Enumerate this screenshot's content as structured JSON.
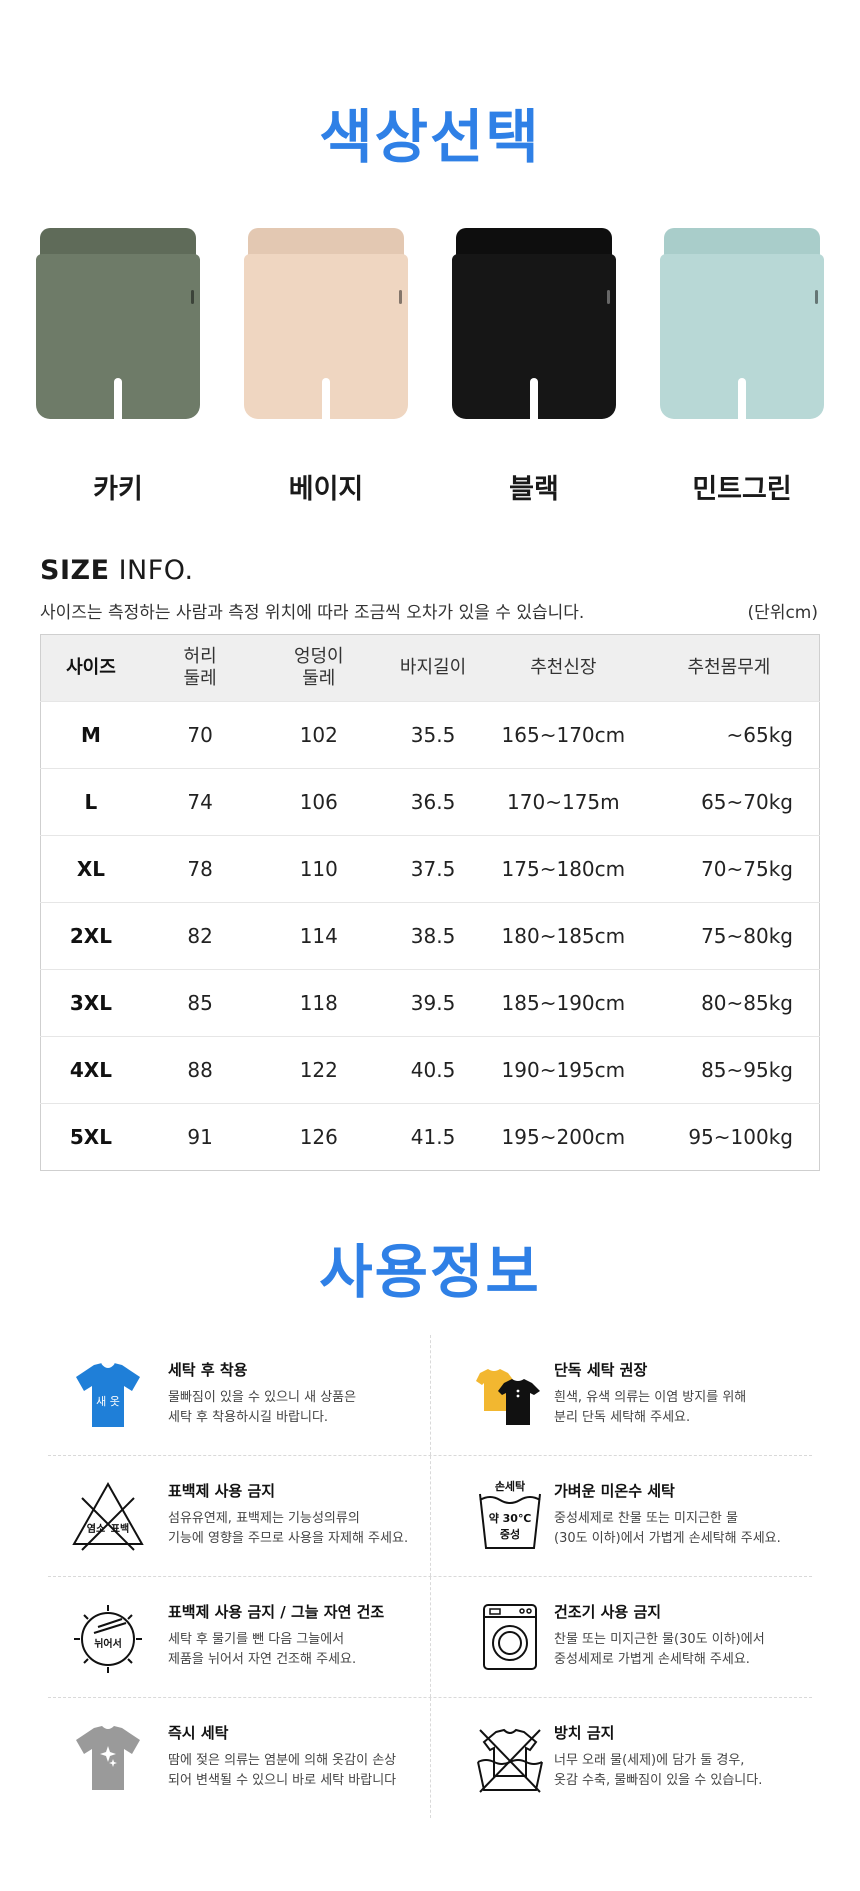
{
  "color_section": {
    "title": "색상선택",
    "options": [
      {
        "label": "카키",
        "color": "#6e7b68"
      },
      {
        "label": "베이지",
        "color": "#efd6c1"
      },
      {
        "label": "블랙",
        "color": "#161616"
      },
      {
        "label": "민트그린",
        "color": "#b8d8d6"
      }
    ]
  },
  "size_section": {
    "heading_bold": "SIZE",
    "heading_rest": " INFO.",
    "note": "사이즈는 측정하는 사람과 측정 위치에 따라 조금씩 오차가 있을 수 있습니다.",
    "unit": "(단위cm)",
    "headers": [
      "사이즈",
      "허리\n둘레",
      "엉덩이\n둘레",
      "바지길이",
      "추천신장",
      "추천몸무게"
    ],
    "rows": [
      [
        "M",
        "70",
        "102",
        "35.5",
        "165~170cm",
        "~65kg"
      ],
      [
        "L",
        "74",
        "106",
        "36.5",
        "170~175m",
        "65~70kg"
      ],
      [
        "XL",
        "78",
        "110",
        "37.5",
        "175~180cm",
        "70~75kg"
      ],
      [
        "2XL",
        "82",
        "114",
        "38.5",
        "180~185cm",
        "75~80kg"
      ],
      [
        "3XL",
        "85",
        "118",
        "39.5",
        "185~190cm",
        "80~85kg"
      ],
      [
        "4XL",
        "88",
        "122",
        "40.5",
        "190~195cm",
        "85~95kg"
      ],
      [
        "5XL",
        "91",
        "126",
        "41.5",
        "195~200cm",
        "95~100kg"
      ]
    ]
  },
  "care_section": {
    "title": "사용정보",
    "items": [
      {
        "icon": "new-shirt-icon",
        "icon_text": "새 옷",
        "title": "세탁 후 착용",
        "desc": "물빠짐이 있을 수 있으니 새 상품은\n세탁 후 착용하시길 바랍니다."
      },
      {
        "icon": "separate-wash-icon",
        "title": "단독 세탁 권장",
        "desc": "흰색, 유색 의류는 이염 방지를 위해\n분리 단독 세탁해 주세요."
      },
      {
        "icon": "no-bleach-icon",
        "icon_text_left": "염소",
        "icon_text_right": "표백",
        "title": "표백제 사용 금지",
        "desc": "섬유유연제, 표백제는 기능성의류의\n기능에 영향을 주므로 사용을 자제해 주세요."
      },
      {
        "icon": "hand-wash-icon",
        "icon_text_top": "손세탁",
        "icon_text_mid": "약 30℃",
        "icon_text_bot": "중성",
        "title": "가벼운 미온수 세탁",
        "desc": "중성세제로 찬물 또는 미지근한 물\n(30도 이하)에서 가볍게 손세탁해 주세요."
      },
      {
        "icon": "shade-dry-icon",
        "icon_text": "뉘어서",
        "title": "표백제 사용 금지 / 그늘 자연 건조",
        "desc": "세탁 후 물기를 뺀 다음 그늘에서\n제품을 뉘어서 자연 건조해 주세요."
      },
      {
        "icon": "no-dryer-icon",
        "title": "건조기 사용 금지",
        "desc": "찬물 또는 미지근한 물(30도 이하)에서\n중성세제로 가볍게 손세탁해 주세요."
      },
      {
        "icon": "immediate-wash-icon",
        "title": "즉시 세탁",
        "desc": "땀에 젖은 의류는 염분에 의해 옷감이 손상\n되어 변색될 수 있으니 바로 세탁 바랍니다"
      },
      {
        "icon": "no-soaking-icon",
        "title": "방치 금지",
        "desc": "너무 오래 물(세제)에 담가 둘 경우,\n옷감 수축, 물빠짐이 있을 수 있습니다."
      }
    ]
  }
}
